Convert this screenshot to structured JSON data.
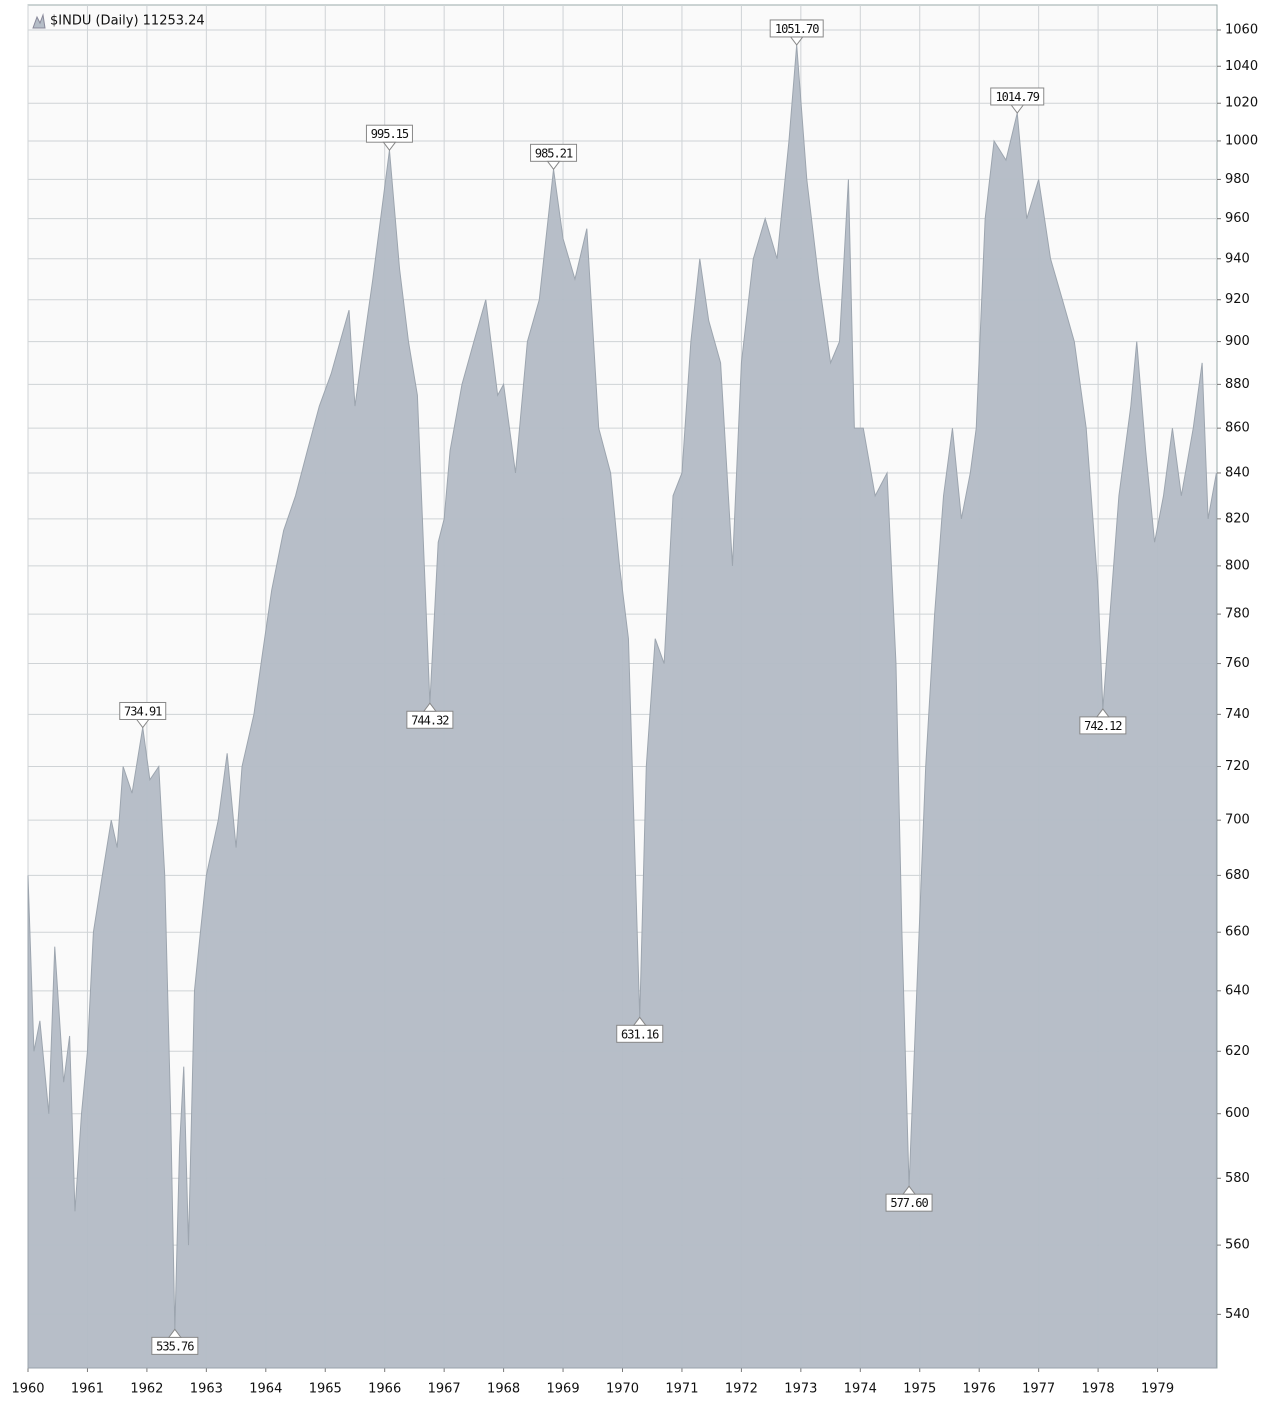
{
  "chart_data": {
    "type": "area",
    "log_scale": true,
    "grid": true,
    "legend": "top-left",
    "series": [
      {
        "name": "$INDU (Daily) 11253.24",
        "color": "#b5bdc7",
        "x": [
          1960.0,
          1960.1,
          1960.2,
          1960.35,
          1960.45,
          1960.6,
          1960.7,
          1960.79,
          1960.9,
          1961.0,
          1961.1,
          1961.25,
          1961.4,
          1961.5,
          1961.6,
          1961.75,
          1961.93,
          1962.05,
          1962.2,
          1962.3,
          1962.4,
          1962.47,
          1962.55,
          1962.62,
          1962.7,
          1962.8,
          1962.9,
          1963.0,
          1963.2,
          1963.35,
          1963.5,
          1963.6,
          1963.8,
          1963.95,
          1964.1,
          1964.3,
          1964.5,
          1964.7,
          1964.9,
          1965.1,
          1965.25,
          1965.4,
          1965.5,
          1965.6,
          1965.8,
          1966.08,
          1966.25,
          1966.4,
          1966.55,
          1966.76,
          1966.9,
          1967.0,
          1967.1,
          1967.3,
          1967.5,
          1967.7,
          1967.9,
          1968.0,
          1968.2,
          1968.4,
          1968.6,
          1968.84,
          1969.0,
          1969.2,
          1969.4,
          1969.6,
          1969.8,
          1969.95,
          1970.1,
          1970.29,
          1970.4,
          1970.55,
          1970.7,
          1970.85,
          1971.0,
          1971.15,
          1971.3,
          1971.45,
          1971.65,
          1971.85,
          1972.0,
          1972.2,
          1972.4,
          1972.6,
          1972.8,
          1972.93,
          1973.1,
          1973.3,
          1973.5,
          1973.65,
          1973.8,
          1973.9,
          1974.05,
          1974.25,
          1974.45,
          1974.6,
          1974.7,
          1974.82,
          1974.95,
          1975.1,
          1975.25,
          1975.4,
          1975.55,
          1975.7,
          1975.85,
          1975.95,
          1976.1,
          1976.25,
          1976.45,
          1976.64,
          1976.8,
          1977.0,
          1977.2,
          1977.4,
          1977.6,
          1977.8,
          1978.0,
          1978.08,
          1978.2,
          1978.35,
          1978.55,
          1978.65,
          1978.8,
          1978.95,
          1979.1,
          1979.25,
          1979.4,
          1979.6,
          1979.75,
          1979.85,
          1979.99
        ],
        "values": [
          680,
          620,
          630,
          600,
          655,
          610,
          625,
          570,
          600,
          620,
          660,
          680,
          700,
          690,
          720,
          710,
          734.91,
          715,
          720,
          680,
          600,
          535.76,
          590,
          615,
          560,
          640,
          660,
          680,
          700,
          725,
          690,
          720,
          740,
          765,
          790,
          815,
          830,
          850,
          870,
          885,
          900,
          915,
          870,
          890,
          930,
          995.15,
          935,
          900,
          875,
          744.32,
          810,
          820,
          850,
          880,
          900,
          920,
          875,
          880,
          840,
          900,
          920,
          985.21,
          950,
          930,
          955,
          860,
          840,
          800,
          770,
          631.16,
          720,
          770,
          760,
          830,
          840,
          900,
          940,
          910,
          890,
          800,
          890,
          940,
          960,
          940,
          1000,
          1051.7,
          980,
          930,
          890,
          900,
          980,
          860,
          860,
          830,
          840,
          760,
          660,
          577.6,
          640,
          720,
          780,
          830,
          860,
          820,
          840,
          860,
          960,
          1000,
          990,
          1014.79,
          960,
          980,
          940,
          920,
          900,
          860,
          790,
          742.12,
          780,
          830,
          870,
          900,
          850,
          810,
          830,
          860,
          830,
          860,
          890,
          820,
          840
        ]
      }
    ],
    "annotations": [
      {
        "label": "734.91",
        "x": 1961.93,
        "y": 734.91
      },
      {
        "label": "535.76",
        "x": 1962.47,
        "y": 535.76
      },
      {
        "label": "995.15",
        "x": 1966.08,
        "y": 995.15
      },
      {
        "label": "744.32",
        "x": 1966.76,
        "y": 744.32
      },
      {
        "label": "985.21",
        "x": 1968.84,
        "y": 985.21
      },
      {
        "label": "631.16",
        "x": 1970.29,
        "y": 631.16
      },
      {
        "label": "1051.70",
        "x": 1972.93,
        "y": 1051.7
      },
      {
        "label": "577.60",
        "x": 1974.82,
        "y": 577.6
      },
      {
        "label": "1014.79",
        "x": 1976.64,
        "y": 1014.79
      },
      {
        "label": "742.12",
        "x": 1978.08,
        "y": 742.12
      }
    ],
    "xlim": [
      1960,
      1980
    ],
    "xticks": [
      1960,
      1961,
      1962,
      1963,
      1964,
      1965,
      1966,
      1967,
      1968,
      1969,
      1970,
      1971,
      1972,
      1973,
      1974,
      1975,
      1976,
      1977,
      1978,
      1979
    ],
    "ylim": [
      525,
      1074
    ],
    "yticks": [
      540,
      560,
      580,
      600,
      620,
      640,
      660,
      680,
      700,
      720,
      740,
      760,
      780,
      800,
      820,
      840,
      860,
      880,
      900,
      920,
      940,
      960,
      980,
      1000,
      1020,
      1040,
      1060
    ]
  }
}
